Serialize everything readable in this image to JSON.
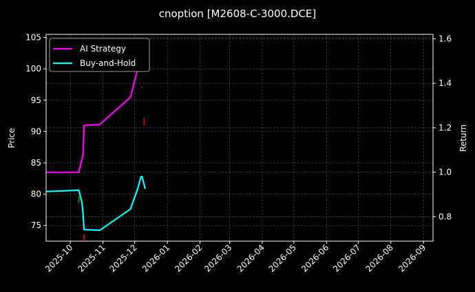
{
  "chart_data": {
    "type": "line",
    "title": "cnoption [M2608-C-3000.DCE]",
    "ylabel": "Price",
    "y2label": "Return",
    "ylim": [
      72.5,
      105.5
    ],
    "y2lim": [
      0.69,
      1.62
    ],
    "xlim": [
      "2025-09-08",
      "2026-09-10"
    ],
    "yticks": [
      75,
      80,
      85,
      90,
      95,
      100,
      105
    ],
    "y2ticks": [
      "0.8",
      "1.0",
      "1.2",
      "1.4",
      "1.6"
    ],
    "xticks": [
      "2025-10",
      "2025-11",
      "2025-12",
      "2026-01",
      "2026-02",
      "2026-03",
      "2026-04",
      "2026-05",
      "2026-06",
      "2026-07",
      "2026-08",
      "2026-09"
    ],
    "grid": true,
    "legend_position": "top-left",
    "background": "#000000",
    "series": [
      {
        "name": "AI Strategy",
        "axis": "right",
        "color": "#ff00ff",
        "x": [
          "2025-09-08",
          "2025-10-09",
          "2025-10-13",
          "2025-10-14",
          "2025-10-29",
          "2025-11-27",
          "2025-12-03",
          "2025-12-08",
          "2025-12-11"
        ],
        "y": [
          1.0,
          1.0,
          1.08,
          1.21,
          1.215,
          1.337,
          1.447,
          1.576,
          1.576
        ]
      },
      {
        "name": "Buy-and-Hold",
        "axis": "right",
        "color": "#00ffff",
        "x": [
          "2025-09-08",
          "2025-10-09",
          "2025-10-12",
          "2025-10-13",
          "2025-10-14",
          "2025-10-29",
          "2025-11-27",
          "2025-12-04",
          "2025-12-07",
          "2025-12-08",
          "2025-12-11"
        ],
        "y": [
          0.913,
          0.919,
          0.864,
          0.815,
          0.742,
          0.739,
          0.834,
          0.928,
          0.98,
          0.98,
          0.925
        ]
      }
    ],
    "markers": [
      {
        "date": "2025-10-09",
        "low": 78.6,
        "high": 79.7,
        "color": "#00aa00"
      },
      {
        "date": "2025-10-14",
        "low": 72.6,
        "high": 73.6,
        "color": "#ff0000"
      },
      {
        "date": "2025-12-08",
        "low": 96.9,
        "high": 97.1,
        "color": "#ff0000"
      },
      {
        "date": "2025-12-10",
        "low": 91.0,
        "high": 92.1,
        "color": "#ff0000"
      }
    ]
  }
}
